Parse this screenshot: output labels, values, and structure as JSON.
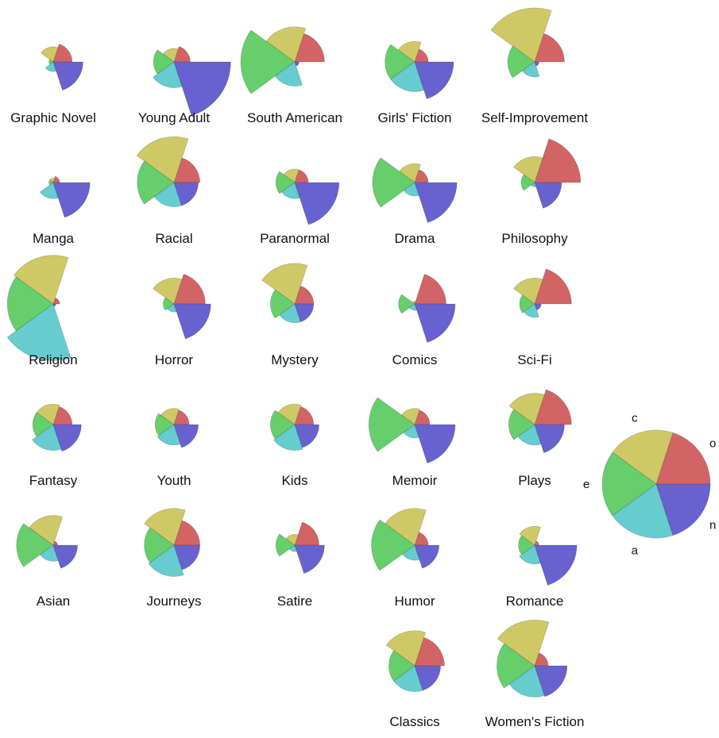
{
  "chart_data": {
    "type": "polar-area small multiples",
    "title": "",
    "sectors": [
      {
        "key": "o",
        "color": "#d26466"
      },
      {
        "key": "c",
        "color": "#cfc866"
      },
      {
        "key": "e",
        "color": "#66ce6a"
      },
      {
        "key": "a",
        "color": "#66cccf"
      },
      {
        "key": "n",
        "color": "#6762cf"
      }
    ],
    "legend": {
      "labels": [
        "o",
        "c",
        "e",
        "a",
        "n"
      ],
      "placement": "right"
    },
    "genres": [
      {
        "name": "Graphic Novel",
        "values": [
          0.35,
          0.28,
          0.08,
          0.18,
          0.55
        ]
      },
      {
        "name": "Young Adult",
        "values": [
          0.3,
          0.25,
          0.38,
          0.48,
          1.05
        ]
      },
      {
        "name": "South American",
        "values": [
          0.55,
          0.65,
          1.0,
          0.45,
          0.08
        ]
      },
      {
        "name": "Girls' Fiction",
        "values": [
          0.25,
          0.38,
          0.55,
          0.55,
          0.72
        ]
      },
      {
        "name": "Self-Improvement",
        "values": [
          0.55,
          1.0,
          0.5,
          0.28,
          0.08
        ]
      },
      {
        "name": "Manga",
        "values": [
          0.12,
          0.08,
          0.08,
          0.3,
          0.68
        ]
      },
      {
        "name": "Racial",
        "values": [
          0.48,
          0.85,
          0.68,
          0.45,
          0.45
        ]
      },
      {
        "name": "Paranormal",
        "values": [
          0.25,
          0.25,
          0.35,
          0.3,
          0.82
        ]
      },
      {
        "name": "Drama",
        "values": [
          0.25,
          0.35,
          0.78,
          0.25,
          0.78
        ]
      },
      {
        "name": "Philosophy",
        "values": [
          0.85,
          0.48,
          0.25,
          0.08,
          0.5
        ]
      },
      {
        "name": "Religion",
        "values": [
          0.12,
          0.9,
          0.85,
          1.05,
          0.05
        ]
      },
      {
        "name": "Horror",
        "values": [
          0.58,
          0.48,
          0.2,
          0.15,
          0.68
        ]
      },
      {
        "name": "Mystery",
        "values": [
          0.35,
          0.75,
          0.45,
          0.35,
          0.35
        ]
      },
      {
        "name": "Comics",
        "values": [
          0.58,
          0.05,
          0.3,
          0.12,
          0.75
        ]
      },
      {
        "name": "Sci-Fi",
        "values": [
          0.68,
          0.48,
          0.28,
          0.25,
          0.12
        ]
      },
      {
        "name": "Fantasy",
        "values": [
          0.35,
          0.38,
          0.38,
          0.48,
          0.52
        ]
      },
      {
        "name": "Youth",
        "values": [
          0.28,
          0.3,
          0.35,
          0.38,
          0.45
        ]
      },
      {
        "name": "Kids",
        "values": [
          0.35,
          0.38,
          0.45,
          0.48,
          0.45
        ]
      },
      {
        "name": "Memoir",
        "values": [
          0.28,
          0.3,
          0.85,
          0.25,
          0.75
        ]
      },
      {
        "name": "Plays",
        "values": [
          0.68,
          0.58,
          0.48,
          0.38,
          0.55
        ]
      },
      {
        "name": "Asian",
        "values": [
          0.08,
          0.55,
          0.68,
          0.3,
          0.45
        ]
      },
      {
        "name": "Journeys",
        "values": [
          0.48,
          0.68,
          0.55,
          0.58,
          0.48
        ]
      },
      {
        "name": "Satire",
        "values": [
          0.45,
          0.2,
          0.35,
          0.12,
          0.55
        ]
      },
      {
        "name": "Humor",
        "values": [
          0.25,
          0.68,
          0.8,
          0.28,
          0.45
        ]
      },
      {
        "name": "Romance",
        "values": [
          0.08,
          0.35,
          0.3,
          0.35,
          0.78
        ]
      },
      {
        "name": "Classics",
        "values": [
          0.55,
          0.65,
          0.48,
          0.48,
          0.48
        ]
      },
      {
        "name": "Women's Fiction",
        "values": [
          0.25,
          0.85,
          0.7,
          0.58,
          0.6
        ]
      }
    ]
  }
}
